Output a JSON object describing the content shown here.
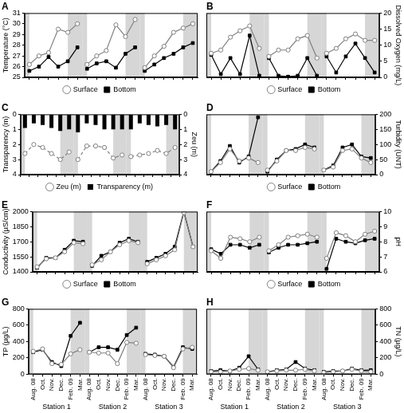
{
  "chart_data": [
    {
      "type": "line",
      "title": "A",
      "ylabel": "Temperature (°C)",
      "categories": [
        "Aug. 08",
        "Oct.",
        "Nov.",
        "Dec.",
        "Feb. 09",
        "Mar.",
        "Aug. 08",
        "Oct.",
        "Nov.",
        "Dec.",
        "Feb. 09",
        "Mar.",
        "Aug. 08",
        "Oct.",
        "Nov.",
        "Dec.",
        "Feb. 09",
        "Mar."
      ],
      "groups": [
        "Station 1",
        "Station 2",
        "Station 3"
      ],
      "ylim": [
        25,
        31
      ],
      "yticks": [
        25,
        26,
        27,
        28,
        29,
        30,
        31
      ],
      "series": [
        {
          "name": "Surface",
          "color": "#808080",
          "marker": "circle_open",
          "values": [
            26.2,
            27.0,
            27.3,
            29.5,
            29.2,
            30.0,
            26.2,
            27.0,
            27.5,
            29.9,
            28.8,
            30.4,
            25.9,
            27.0,
            27.9,
            29.2,
            29.6,
            30.0
          ]
        },
        {
          "name": "Bottom",
          "color": "#000000",
          "marker": "square",
          "values": [
            25.6,
            26.0,
            26.9,
            26.0,
            26.5,
            27.8,
            25.8,
            26.3,
            26.5,
            25.9,
            27.2,
            27.8,
            25.6,
            26.2,
            26.8,
            27.2,
            27.8,
            28.2
          ]
        }
      ],
      "legend": "bottom",
      "grid": false,
      "tick_labels": "y"
    },
    {
      "type": "line",
      "title": "B",
      "y2label": "Dissolved Oxygen (mg/L)",
      "categories": [
        "Aug. 08",
        "Oct.",
        "Nov.",
        "Dec.",
        "Feb. 09",
        "Mar.",
        "Aug. 08",
        "Oct.",
        "Nov.",
        "Dec.",
        "Feb. 09",
        "Mar.",
        "Aug. 08",
        "Oct.",
        "Nov.",
        "Dec.",
        "Feb. 09",
        "Mar."
      ],
      "groups": [
        "Station 1",
        "Station 2",
        "Station 3"
      ],
      "y2lim": [
        0,
        20
      ],
      "y2ticks": [
        0,
        5,
        10,
        15,
        20
      ],
      "series": [
        {
          "name": "Surface",
          "color": "#808080",
          "marker": "circle_open",
          "axis": "y2",
          "values": [
            7.5,
            8.5,
            12.5,
            14.5,
            16.0,
            9.0,
            6.5,
            8.5,
            8.5,
            12.0,
            13.0,
            6.0,
            7.5,
            9.0,
            12.0,
            13.5,
            11.5,
            11.5
          ]
        },
        {
          "name": "Bottom",
          "color": "#000000",
          "marker": "square",
          "axis": "y2",
          "values": [
            7.0,
            1.0,
            6.0,
            1.0,
            13.0,
            0.5,
            6.0,
            0.5,
            0.2,
            0.5,
            6.0,
            0.5,
            6.5,
            1.5,
            6.5,
            10.5,
            6.0,
            1.5
          ]
        }
      ],
      "legend": "bottom",
      "grid": false,
      "tick_labels": "y"
    },
    {
      "type": "bar",
      "title": "C",
      "ylabel": "Transparency (m)",
      "y2label": "Zeu (m)",
      "categories": [
        "Aug. 08",
        "Oct.",
        "Nov.",
        "Dec.",
        "Feb. 09",
        "Mar.",
        "Aug. 08",
        "Oct.",
        "Nov.",
        "Dec.",
        "Feb. 09",
        "Mar.",
        "Aug. 08",
        "Oct.",
        "Nov.",
        "Dec.",
        "Feb. 09",
        "Mar."
      ],
      "groups": [
        "Station 1",
        "Station 2",
        "Station 3"
      ],
      "ylim": [
        4,
        0
      ],
      "yticks": [
        0,
        1,
        2,
        3,
        4
      ],
      "y2lim": [
        4,
        0
      ],
      "y2ticks": [
        0,
        1,
        2,
        3,
        4
      ],
      "series": [
        {
          "name": "Zeu (m)",
          "type": "line",
          "color": "#808080",
          "marker": "circle_open",
          "line_style": "dashed",
          "axis": "y2",
          "values": [
            2.6,
            2.0,
            2.2,
            2.6,
            3.0,
            2.5,
            3.0,
            2.1,
            2.1,
            2.2,
            2.9,
            2.7,
            2.8,
            2.7,
            2.6,
            2.4,
            2.6,
            2.2
          ]
        },
        {
          "name": "Transparency (m)",
          "type": "bar",
          "color": "#000000",
          "values": [
            0.9,
            0.6,
            0.7,
            0.9,
            1.1,
            1.0,
            1.2,
            0.6,
            0.7,
            1.0,
            1.0,
            1.0,
            1.0,
            0.6,
            0.7,
            0.8,
            0.7,
            1.0
          ]
        }
      ],
      "legend": "bottom",
      "grid": false,
      "tick_labels": "y"
    },
    {
      "type": "line",
      "title": "D",
      "y2label": "Turbidity (UNT)",
      "categories": [
        "Aug. 08",
        "Oct.",
        "Nov.",
        "Dec.",
        "Feb. 09",
        "Mar.",
        "Aug. 08",
        "Oct.",
        "Nov.",
        "Dec.",
        "Feb. 09",
        "Mar.",
        "Aug. 08",
        "Oct.",
        "Nov.",
        "Dec.",
        "Feb. 09",
        "Mar."
      ],
      "groups": [
        "Station 1",
        "Station 2",
        "Station 3"
      ],
      "y2lim": [
        0,
        200
      ],
      "y2ticks": [
        0,
        50,
        100,
        150,
        200
      ],
      "series": [
        {
          "name": "Surface",
          "color": "#808080",
          "marker": "circle_open",
          "axis": "y2",
          "values": [
            10,
            40,
            85,
            45,
            55,
            40,
            15,
            45,
            80,
            80,
            90,
            85,
            15,
            25,
            80,
            85,
            55,
            40
          ]
        },
        {
          "name": "Bottom",
          "color": "#000000",
          "marker": "square",
          "axis": "y2",
          "values": [
            10,
            45,
            95,
            40,
            60,
            190,
            10,
            50,
            80,
            85,
            100,
            90,
            15,
            30,
            90,
            100,
            60,
            55
          ]
        }
      ],
      "legend": "bottom",
      "grid": false,
      "tick_labels": "y"
    },
    {
      "type": "line",
      "title": "E",
      "ylabel": "Conductivity (µS/cm)",
      "categories": [
        "Aug. 08",
        "Oct.",
        "Nov.",
        "Dec.",
        "Feb. 09",
        "Mar.",
        "Aug. 08",
        "Oct.",
        "Nov.",
        "Dec.",
        "Feb. 09",
        "Mar.",
        "Aug. 08",
        "Oct.",
        "Nov.",
        "Dec.",
        "Feb. 09",
        "Mar."
      ],
      "groups": [
        "Station 1",
        "Station 2",
        "Station 3"
      ],
      "ylim": [
        1400,
        2000
      ],
      "yticks": [
        1400,
        1550,
        1700,
        1850,
        2000
      ],
      "series": [
        {
          "name": "Surface",
          "color": "#808080",
          "marker": "circle_open",
          "values": [
            1450,
            1530,
            1540,
            1600,
            1690,
            1680,
            1470,
            1520,
            1600,
            1670,
            1710,
            1690,
            1480,
            1520,
            1560,
            1620,
            1990,
            1650
          ]
        },
        {
          "name": "Bottom",
          "color": "#000000",
          "marker": "square",
          "values": [
            1440,
            1540,
            1540,
            1620,
            1710,
            1700,
            1460,
            1560,
            1600,
            1690,
            1730,
            1700,
            1500,
            1540,
            1580,
            1650,
            2000,
            1650
          ]
        }
      ],
      "legend": "bottom",
      "grid": false,
      "tick_labels": "y"
    },
    {
      "type": "line",
      "title": "F",
      "y2label": "pH",
      "categories": [
        "Aug. 08",
        "Oct.",
        "Nov.",
        "Dec.",
        "Feb. 09",
        "Mar.",
        "Aug. 08",
        "Oct.",
        "Nov.",
        "Dec.",
        "Feb. 09",
        "Mar.",
        "Aug. 08",
        "Oct.",
        "Nov.",
        "Dec.",
        "Feb. 09",
        "Mar."
      ],
      "groups": [
        "Station 1",
        "Station 2",
        "Station 3"
      ],
      "y2lim": [
        6,
        10
      ],
      "y2ticks": [
        6,
        7,
        8,
        9,
        10
      ],
      "series": [
        {
          "name": "Surface",
          "color": "#808080",
          "marker": "circle_open",
          "axis": "y2",
          "values": [
            7.4,
            6.9,
            8.3,
            8.2,
            8.0,
            8.3,
            7.4,
            7.8,
            8.3,
            8.4,
            8.5,
            8.3,
            6.9,
            8.6,
            8.4,
            8.0,
            8.5,
            8.7
          ]
        },
        {
          "name": "Bottom",
          "color": "#000000",
          "marker": "square",
          "axis": "y2",
          "values": [
            7.5,
            7.2,
            7.8,
            7.8,
            7.6,
            7.8,
            7.3,
            7.6,
            7.8,
            7.8,
            7.9,
            8.0,
            6.2,
            8.2,
            8.0,
            7.9,
            8.1,
            8.2
          ]
        }
      ],
      "legend": "bottom",
      "grid": false,
      "tick_labels": "y"
    },
    {
      "type": "line",
      "title": "G",
      "ylabel": "TP (µg/L)",
      "categories": [
        "Aug. 08",
        "Oct.",
        "Nov.",
        "Dec.",
        "Feb. 09",
        "Mar.",
        "Aug. 08",
        "Oct.",
        "Nov.",
        "Dec.",
        "Feb. 09",
        "Mar.",
        "Aug. 08",
        "Oct.",
        "Nov.",
        "Dec.",
        "Feb. 09",
        "Mar."
      ],
      "groups": [
        "Station 1",
        "Station 2",
        "Station 3"
      ],
      "ylim": [
        0,
        800
      ],
      "yticks": [
        0,
        200,
        400,
        600,
        800
      ],
      "series": [
        {
          "name": "Surface",
          "color": "#808080",
          "marker": "circle_open",
          "values": [
            280,
            310,
            130,
            120,
            250,
            300,
            270,
            260,
            260,
            130,
            390,
            380,
            240,
            230,
            220,
            80,
            310,
            330
          ]
        },
        {
          "name": "Bottom",
          "color": "#000000",
          "marker": "square",
          "values": [
            270,
            300,
            150,
            100,
            470,
            630,
            270,
            330,
            330,
            300,
            480,
            570,
            250,
            240,
            220,
            90,
            330,
            310
          ]
        }
      ],
      "grid": false
    },
    {
      "type": "line",
      "title": "H",
      "y2label": "TN (µg/L)",
      "categories": [
        "Aug. 08",
        "Oct.",
        "Nov.",
        "Dec.",
        "Feb. 09",
        "Mar.",
        "Aug. 08",
        "Oct.",
        "Nov.",
        "Dec.",
        "Feb. 09",
        "Mar.",
        "Aug. 08",
        "Oct.",
        "Nov.",
        "Dec.",
        "Feb. 09",
        "Mar."
      ],
      "groups": [
        "Station 1",
        "Station 2",
        "Station 3"
      ],
      "y2lim": [
        0,
        800
      ],
      "y2ticks": [
        0,
        200,
        400,
        600,
        800
      ],
      "series": [
        {
          "name": "Surface",
          "color": "#808080",
          "marker": "circle_open",
          "axis": "y2",
          "values": [
            30,
            30,
            40,
            60,
            70,
            50,
            30,
            40,
            50,
            50,
            60,
            40,
            20,
            30,
            40,
            60,
            40,
            30
          ]
        },
        {
          "name": "Bottom",
          "color": "#000000",
          "marker": "square",
          "axis": "y2",
          "values": [
            40,
            50,
            40,
            80,
            220,
            60,
            30,
            50,
            60,
            150,
            70,
            50,
            30,
            40,
            40,
            70,
            50,
            50
          ]
        }
      ],
      "grid": false
    }
  ]
}
